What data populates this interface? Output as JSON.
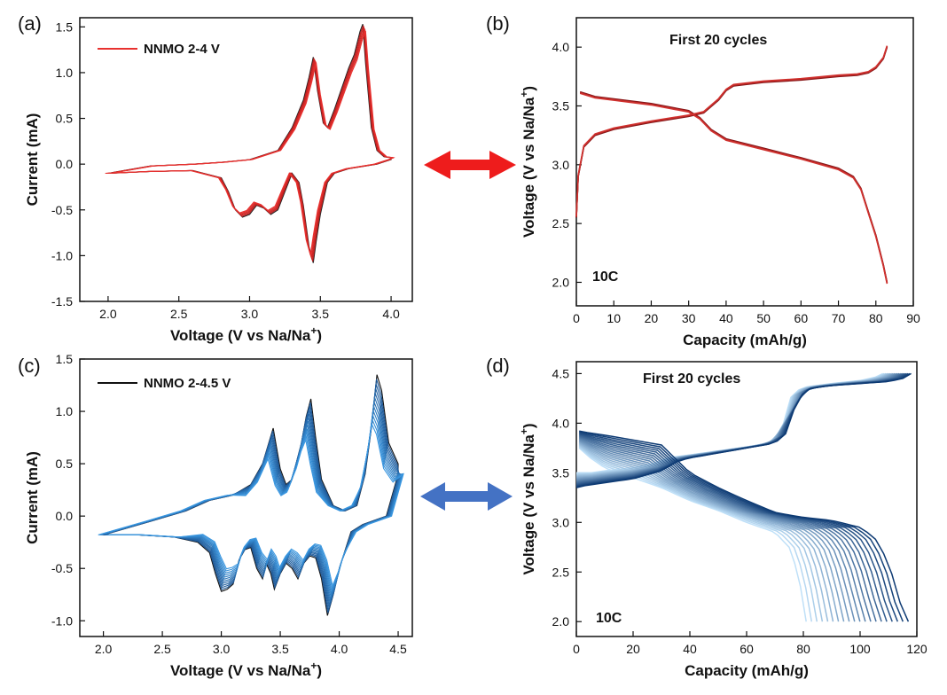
{
  "colors": {
    "red": "#e8312f",
    "darkred": "#a8191b",
    "blue_dark": "#0d3a73",
    "blue_light": "#bfe0f8",
    "arrow_red": "#ee1c1c",
    "arrow_blue": "#4472c4"
  },
  "chart_data": [
    {
      "panel": "(a)",
      "type": "line",
      "xlabel": "Voltage (V vs Na/Na",
      "xlabel_sup": "+",
      "xlabel_end": ")",
      "ylabel": "Current (mA)",
      "xlim": [
        1.8,
        4.15
      ],
      "ylim": [
        -1.5,
        1.6
      ],
      "xticks": [
        "2.0",
        "2.5",
        "3.0",
        "3.5",
        "4.0"
      ],
      "xtick_values": [
        2.0,
        2.5,
        3.0,
        3.5,
        4.0
      ],
      "yticks": [
        "-1.5",
        "-1.0",
        "-0.5",
        "0.0",
        "0.5",
        "1.0",
        "1.5"
      ],
      "ytick_values": [
        -1.5,
        -1.0,
        -0.5,
        0.0,
        0.5,
        1.0,
        1.5
      ],
      "legend": "NNMO 2-4 V",
      "legend_color": "#e8312f",
      "cycles": 6,
      "anodic": {
        "x": [
          2.0,
          2.3,
          2.6,
          2.8,
          3.0,
          3.2,
          3.3,
          3.38,
          3.42,
          3.45,
          3.48,
          3.52,
          3.55,
          3.6,
          3.7,
          3.74,
          3.78,
          3.8,
          3.82,
          3.86,
          3.9,
          3.95,
          4.0
        ],
        "y": [
          -0.1,
          -0.02,
          0.0,
          0.02,
          0.05,
          0.15,
          0.4,
          0.7,
          0.95,
          1.17,
          0.8,
          0.45,
          0.4,
          0.6,
          1.05,
          1.2,
          1.45,
          1.53,
          1.1,
          0.4,
          0.15,
          0.08,
          0.07
        ]
      },
      "cathodic": {
        "x": [
          4.0,
          3.9,
          3.7,
          3.6,
          3.55,
          3.5,
          3.47,
          3.45,
          3.42,
          3.38,
          3.35,
          3.3,
          3.25,
          3.2,
          3.15,
          3.1,
          3.05,
          3.0,
          2.95,
          2.9,
          2.85,
          2.8,
          2.6,
          2.3,
          2.0
        ],
        "y": [
          0.05,
          0.0,
          -0.05,
          -0.1,
          -0.2,
          -0.55,
          -0.85,
          -1.08,
          -0.9,
          -0.45,
          -0.2,
          -0.1,
          -0.3,
          -0.5,
          -0.55,
          -0.48,
          -0.45,
          -0.55,
          -0.58,
          -0.5,
          -0.3,
          -0.15,
          -0.07,
          -0.08,
          -0.1
        ]
      }
    },
    {
      "panel": "(b)",
      "type": "line",
      "xlabel": "Capacity (mAh/g)",
      "ylabel": "Voltage (V vs Na/Na",
      "ylabel_sup": "+",
      "ylabel_end": ")",
      "xlim": [
        0,
        90
      ],
      "ylim": [
        1.8,
        4.25
      ],
      "xticks": [
        "0",
        "10",
        "20",
        "30",
        "40",
        "50",
        "60",
        "70",
        "80",
        "90"
      ],
      "xtick_values": [
        0,
        10,
        20,
        30,
        40,
        50,
        60,
        70,
        80,
        90
      ],
      "yticks": [
        "2.0",
        "2.5",
        "3.0",
        "3.5",
        "4.0"
      ],
      "ytick_values": [
        2.0,
        2.5,
        3.0,
        3.5,
        4.0
      ],
      "title": "First 20 cycles",
      "annotation": "10C",
      "charge": {
        "x": [
          0,
          0.5,
          2,
          5,
          10,
          20,
          30,
          34,
          38,
          40,
          42,
          50,
          60,
          70,
          75,
          78,
          80,
          82,
          83
        ],
        "y": [
          2.55,
          2.9,
          3.15,
          3.25,
          3.3,
          3.36,
          3.41,
          3.44,
          3.55,
          3.63,
          3.67,
          3.7,
          3.72,
          3.75,
          3.76,
          3.78,
          3.82,
          3.9,
          4.0
        ]
      },
      "discharge": {
        "x": [
          1,
          5,
          10,
          20,
          30,
          33,
          36,
          40,
          50,
          60,
          70,
          74,
          76,
          78,
          80,
          82,
          83
        ],
        "y": [
          3.62,
          3.58,
          3.56,
          3.52,
          3.46,
          3.4,
          3.3,
          3.22,
          3.14,
          3.06,
          2.97,
          2.9,
          2.8,
          2.6,
          2.4,
          2.15,
          2.0
        ]
      }
    },
    {
      "panel": "(c)",
      "type": "line",
      "xlabel": "Voltage (V vs Na/Na",
      "xlabel_sup": "+",
      "xlabel_end": ")",
      "ylabel": "Current (mA)",
      "xlim": [
        1.8,
        4.62
      ],
      "ylim": [
        -1.15,
        1.5
      ],
      "xticks": [
        "2.0",
        "2.5",
        "3.0",
        "3.5",
        "4.0",
        "4.5"
      ],
      "xtick_values": [
        2.0,
        2.5,
        3.0,
        3.5,
        4.0,
        4.5
      ],
      "yticks": [
        "-1.0",
        "-0.5",
        "0.0",
        "0.5",
        "1.0",
        "1.5"
      ],
      "ytick_values": [
        -1.0,
        -0.5,
        0.0,
        0.5,
        1.0,
        1.5
      ],
      "legend": "NNMO 2-4.5 V",
      "legend_color": "#111111",
      "cycles": 12,
      "anodic": {
        "x": [
          2.0,
          2.4,
          2.7,
          2.9,
          3.1,
          3.25,
          3.35,
          3.44,
          3.5,
          3.55,
          3.6,
          3.68,
          3.72,
          3.76,
          3.8,
          3.85,
          3.95,
          4.05,
          4.15,
          4.22,
          4.28,
          4.32,
          4.36,
          4.42,
          4.5
        ],
        "y": [
          -0.18,
          -0.05,
          0.05,
          0.15,
          0.2,
          0.3,
          0.5,
          0.84,
          0.45,
          0.3,
          0.35,
          0.7,
          0.95,
          1.12,
          0.75,
          0.35,
          0.1,
          0.05,
          0.1,
          0.4,
          0.9,
          1.35,
          1.2,
          0.7,
          0.5
        ]
      },
      "cathodic": {
        "x": [
          4.5,
          4.4,
          4.2,
          4.1,
          4.0,
          3.95,
          3.9,
          3.85,
          3.8,
          3.75,
          3.7,
          3.65,
          3.6,
          3.55,
          3.5,
          3.45,
          3.42,
          3.38,
          3.35,
          3.3,
          3.25,
          3.2,
          3.15,
          3.1,
          3.05,
          3.0,
          2.95,
          2.9,
          2.8,
          2.6,
          2.3,
          2.0
        ],
        "y": [
          0.4,
          0.0,
          -0.08,
          -0.15,
          -0.5,
          -0.75,
          -0.95,
          -0.6,
          -0.4,
          -0.38,
          -0.45,
          -0.6,
          -0.5,
          -0.45,
          -0.55,
          -0.7,
          -0.55,
          -0.45,
          -0.6,
          -0.5,
          -0.3,
          -0.32,
          -0.42,
          -0.65,
          -0.7,
          -0.72,
          -0.55,
          -0.35,
          -0.25,
          -0.2,
          -0.18,
          -0.18
        ]
      }
    },
    {
      "panel": "(d)",
      "type": "line",
      "xlabel": "Capacity (mAh/g)",
      "ylabel": "Voltage (V vs Na/Na",
      "ylabel_sup": "+",
      "ylabel_end": ")",
      "xlim": [
        0,
        120
      ],
      "ylim": [
        1.85,
        4.62
      ],
      "xticks": [
        "0",
        "20",
        "40",
        "60",
        "80",
        "100",
        "120"
      ],
      "xtick_values": [
        0,
        20,
        40,
        60,
        80,
        100,
        120
      ],
      "yticks": [
        "2.0",
        "2.5",
        "3.0",
        "3.5",
        "4.0",
        "4.5"
      ],
      "ytick_values": [
        2.0,
        2.5,
        3.0,
        3.5,
        4.0,
        4.5
      ],
      "title": "First 20 cycles",
      "annotation": "10C",
      "cycles": 20,
      "charge_first": {
        "x": [
          0,
          3,
          10,
          20,
          30,
          36,
          40,
          50,
          60,
          70,
          74,
          78,
          82,
          90,
          100,
          110,
          115,
          118
        ],
        "y": [
          3.35,
          3.37,
          3.4,
          3.44,
          3.52,
          3.62,
          3.65,
          3.7,
          3.75,
          3.8,
          3.9,
          4.25,
          4.35,
          4.38,
          4.4,
          4.42,
          4.45,
          4.5
        ]
      },
      "charge_last": {
        "x": [
          0,
          5,
          10,
          20,
          28,
          32,
          40,
          50,
          60,
          68,
          72,
          76,
          80,
          90,
          100,
          105,
          108
        ],
        "y": [
          3.5,
          3.5,
          3.52,
          3.55,
          3.6,
          3.65,
          3.68,
          3.72,
          3.76,
          3.8,
          3.9,
          4.3,
          4.36,
          4.4,
          4.43,
          4.46,
          4.5
        ]
      },
      "discharge_first": {
        "x": [
          1,
          5,
          10,
          20,
          30,
          40,
          50,
          60,
          70,
          80,
          90,
          100,
          105,
          110,
          113,
          115,
          117
        ],
        "y": [
          3.92,
          3.9,
          3.88,
          3.83,
          3.78,
          3.5,
          3.35,
          3.22,
          3.1,
          3.05,
          3.02,
          2.95,
          2.85,
          2.6,
          2.3,
          2.1,
          2.0
        ]
      },
      "discharge_last": {
        "x": [
          1,
          5,
          10,
          20,
          30,
          40,
          50,
          60,
          70,
          75,
          78,
          80,
          81
        ],
        "y": [
          3.75,
          3.65,
          3.55,
          3.45,
          3.35,
          3.22,
          3.12,
          3.0,
          2.9,
          2.75,
          2.5,
          2.2,
          2.0
        ]
      }
    }
  ]
}
